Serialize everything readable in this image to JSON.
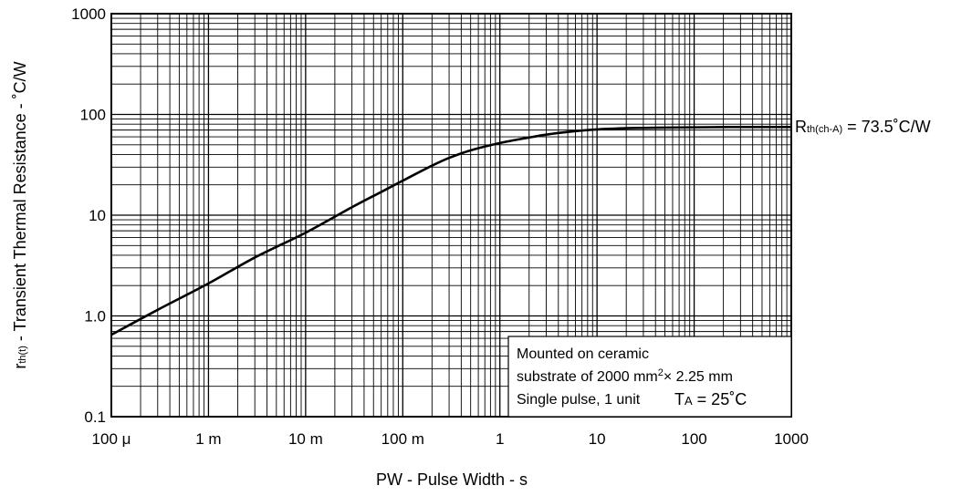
{
  "chart_data": {
    "type": "line",
    "x_scale": "log",
    "y_scale": "log",
    "xlim": [
      0.0001,
      1000
    ],
    "ylim": [
      0.1,
      1000
    ],
    "grid": true,
    "x_ticks": [
      {
        "value": 0.0001,
        "label": "100 μ"
      },
      {
        "value": 0.001,
        "label": "1 m"
      },
      {
        "value": 0.01,
        "label": "10 m"
      },
      {
        "value": 0.1,
        "label": "100 m"
      },
      {
        "value": 1,
        "label": "1"
      },
      {
        "value": 10,
        "label": "10"
      },
      {
        "value": 100,
        "label": "100"
      },
      {
        "value": 1000,
        "label": "1000"
      }
    ],
    "y_ticks": [
      {
        "value": 0.1,
        "label": "0.1"
      },
      {
        "value": 1,
        "label": "1.0"
      },
      {
        "value": 10,
        "label": "10"
      },
      {
        "value": 100,
        "label": "100"
      },
      {
        "value": 1000,
        "label": "1000"
      }
    ],
    "xlabel": "PW - Pulse Width - s",
    "ylabel": {
      "prefix": "r",
      "sub": "th(t)",
      "rest": " - Transient Thermal Resistance - ˚C/W"
    },
    "series": [
      {
        "x": [
          0.0001,
          0.0003,
          0.001,
          0.003,
          0.01,
          0.03,
          0.06,
          0.1,
          0.2,
          0.3,
          0.5,
          1,
          2,
          3,
          5,
          10,
          20,
          30,
          50,
          100,
          300,
          1000
        ],
        "y": [
          0.65,
          1.15,
          2.1,
          3.8,
          6.7,
          12,
          17,
          22,
          31,
          37,
          44,
          52,
          59,
          63,
          67,
          71,
          73,
          73.5,
          74,
          74.5,
          75,
          75
        ]
      }
    ],
    "annotations": {
      "rth": {
        "main": "R",
        "sub": "th(ch-A)",
        "rest": " = 73.5˚C/W"
      },
      "box_line1": "Mounted on ceramic",
      "box_line2_a": "substrate of 2000 mm",
      "box_line2_sup": "2",
      "box_line2_b": "× 2.25 mm",
      "box_line3": "Single pulse, 1 unit",
      "ta_main": "T",
      "ta_sub": "A",
      "ta_rest": " = 25˚C"
    }
  }
}
